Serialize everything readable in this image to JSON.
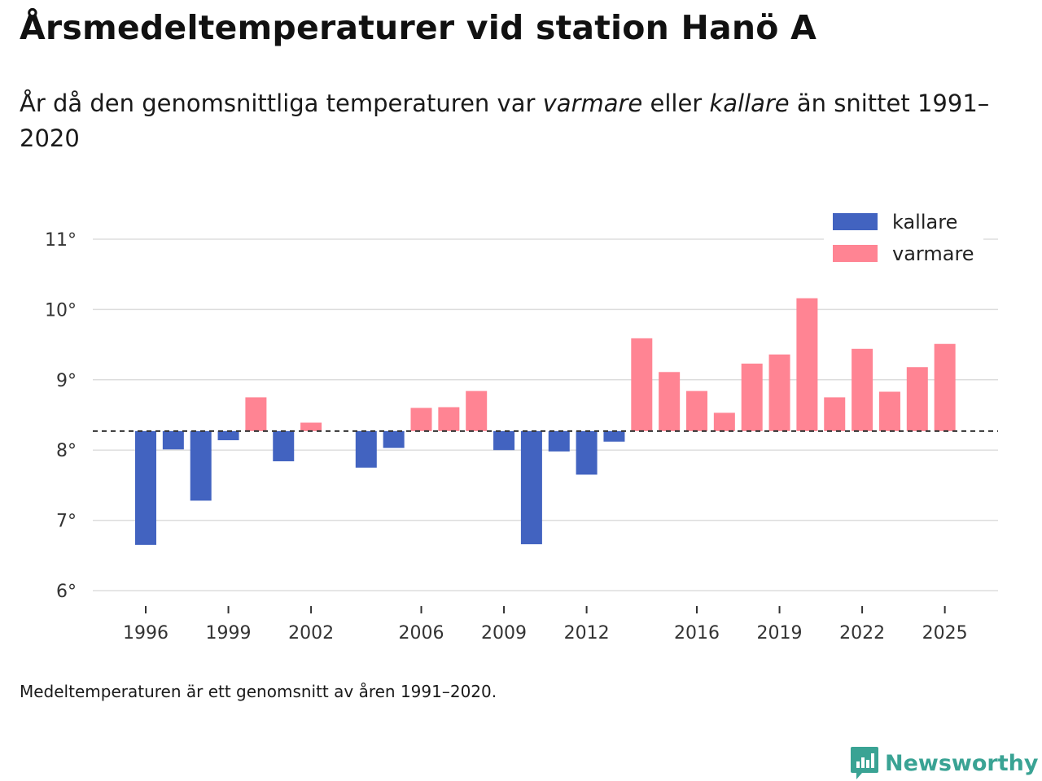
{
  "header": {
    "title": "Årsmedeltemperaturer vid station Hanö A",
    "subtitle_pre": "År då den genomsnittliga temperaturen var ",
    "subtitle_warm": "varmare",
    "subtitle_mid": " eller ",
    "subtitle_cold": "kallare",
    "subtitle_post": " än snittet 1991–2020"
  },
  "footer": {
    "note": "Medeltemperaturen är ett genomsnitt av åren 1991–2020.",
    "brand": "Newsworthy"
  },
  "colors": {
    "cold": "#4263c0",
    "warm": "#ff8493",
    "grid": "#dddddd",
    "baseline": "#333333",
    "brand": "#3aa394"
  },
  "chart_data": {
    "type": "bar",
    "title": "Årsmedeltemperaturer vid station Hanö A",
    "xlabel": "",
    "ylabel": "",
    "baseline": 8.27,
    "ylim": [
      6,
      11
    ],
    "yticks": [
      {
        "value": 6,
        "label": "6°"
      },
      {
        "value": 7,
        "label": "7°"
      },
      {
        "value": 8,
        "label": "8°"
      },
      {
        "value": 9,
        "label": "9°"
      },
      {
        "value": 10,
        "label": "10°"
      },
      {
        "value": 11,
        "label": "11°"
      }
    ],
    "xticks": [
      "1996",
      "1999",
      "2002",
      "2006",
      "2009",
      "2012",
      "2016",
      "2019",
      "2022",
      "2025"
    ],
    "legend": [
      {
        "key": "cold",
        "label": "kallare"
      },
      {
        "key": "warm",
        "label": "varmare"
      }
    ],
    "legend_position": "top-right",
    "years": [
      {
        "year": 1996,
        "value": 6.65
      },
      {
        "year": 1997,
        "value": 8.01
      },
      {
        "year": 1998,
        "value": 7.28
      },
      {
        "year": 1999,
        "value": 8.14
      },
      {
        "year": 2000,
        "value": 8.75
      },
      {
        "year": 2001,
        "value": 7.84
      },
      {
        "year": 2002,
        "value": 8.39
      },
      {
        "year": 2003,
        "value": null
      },
      {
        "year": 2004,
        "value": 7.75
      },
      {
        "year": 2005,
        "value": 8.03
      },
      {
        "year": 2006,
        "value": 8.6
      },
      {
        "year": 2007,
        "value": 8.61
      },
      {
        "year": 2008,
        "value": 8.84
      },
      {
        "year": 2009,
        "value": 8.0
      },
      {
        "year": 2010,
        "value": 6.66
      },
      {
        "year": 2011,
        "value": 7.98
      },
      {
        "year": 2012,
        "value": 7.65
      },
      {
        "year": 2013,
        "value": 8.12
      },
      {
        "year": 2014,
        "value": 9.59
      },
      {
        "year": 2015,
        "value": 9.11
      },
      {
        "year": 2016,
        "value": 8.84
      },
      {
        "year": 2017,
        "value": 8.53
      },
      {
        "year": 2018,
        "value": 9.23
      },
      {
        "year": 2019,
        "value": 9.36
      },
      {
        "year": 2020,
        "value": 10.16
      },
      {
        "year": 2021,
        "value": 8.75
      },
      {
        "year": 2022,
        "value": 9.44
      },
      {
        "year": 2023,
        "value": 8.83
      },
      {
        "year": 2024,
        "value": 9.18
      },
      {
        "year": 2025,
        "value": 9.51
      }
    ]
  }
}
